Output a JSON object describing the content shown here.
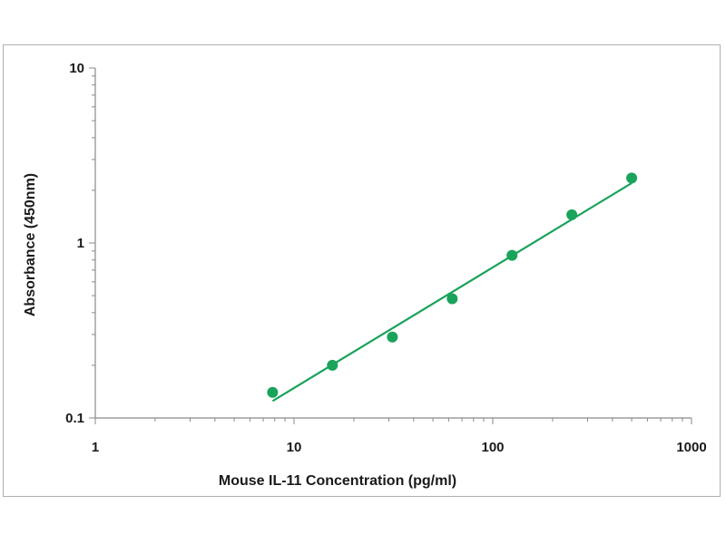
{
  "chart_data": {
    "type": "scatter",
    "title": "",
    "xlabel": "Mouse IL-11 Concentration (pg/ml)",
    "ylabel": "Absorbance (450nm)",
    "x_scale": "log",
    "y_scale": "log",
    "xlim": [
      1,
      1000
    ],
    "ylim": [
      0.1,
      10
    ],
    "x_ticks": [
      "1",
      "10",
      "100",
      "1000"
    ],
    "y_ticks": [
      "10",
      "1",
      "0.1"
    ],
    "grid": false,
    "legend": "none",
    "marker_color": "#1aa35a",
    "line_color": "#1aa35a",
    "points": [
      {
        "x": 7.8,
        "y": 0.14
      },
      {
        "x": 15.6,
        "y": 0.2
      },
      {
        "x": 31.25,
        "y": 0.29
      },
      {
        "x": 62.5,
        "y": 0.48
      },
      {
        "x": 125,
        "y": 0.85
      },
      {
        "x": 250,
        "y": 1.45
      },
      {
        "x": 500,
        "y": 2.35
      }
    ],
    "fit_line": {
      "x_start": 7.8,
      "y_start": 0.125,
      "x_end": 500,
      "y_end": 2.2
    }
  }
}
